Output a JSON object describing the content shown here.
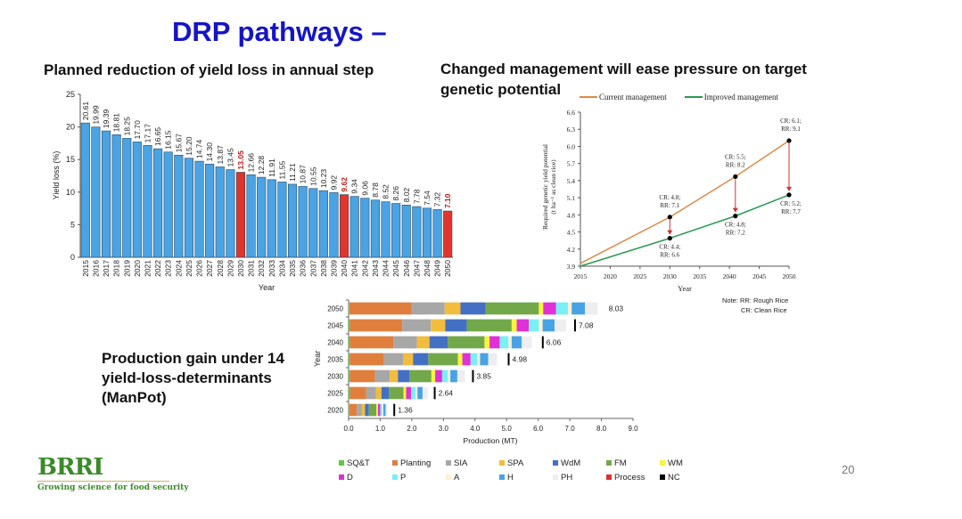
{
  "slide": {
    "title": "DRP pathways –",
    "page_number": "20",
    "bar_heading": "Planned reduction of yield loss in annual step",
    "line_heading": "Changed management will ease pressure on target genetic potential",
    "production_heading": "Production gain under 14 yield-loss-determinants (ManPot)",
    "logo": {
      "mark": "BRRI",
      "tagline": "Growing science for food security"
    },
    "note": {
      "line1": "Note: RR: Rough Rice",
      "line2": "CR: Clean Rice"
    }
  },
  "chart_data": [
    {
      "id": "yield-loss",
      "type": "bar",
      "title": "Planned reduction of yield loss in annual step",
      "xlabel": "Year",
      "ylabel": "Yield loss (%)",
      "ylim": [
        0,
        25
      ],
      "yticks": [
        0,
        5,
        10,
        15,
        20,
        25
      ],
      "categories": [
        "2015",
        "2016",
        "2017",
        "2018",
        "2019",
        "2020",
        "2021",
        "2022",
        "2023",
        "2024",
        "2025",
        "2026",
        "2027",
        "2028",
        "2029",
        "2030",
        "2031",
        "2032",
        "2033",
        "2034",
        "2035",
        "2036",
        "2037",
        "2038",
        "2039",
        "2040",
        "2041",
        "2042",
        "2043",
        "2044",
        "2045",
        "2046",
        "2047",
        "2048",
        "2049",
        "2050"
      ],
      "values": [
        20.61,
        19.99,
        19.39,
        18.81,
        18.25,
        17.7,
        17.17,
        16.65,
        16.15,
        15.67,
        15.2,
        14.74,
        14.3,
        13.87,
        13.45,
        13.05,
        12.66,
        12.28,
        11.91,
        11.55,
        11.21,
        10.87,
        10.55,
        10.23,
        9.92,
        9.62,
        9.34,
        9.06,
        8.78,
        8.52,
        8.26,
        8.02,
        7.78,
        7.54,
        7.32,
        7.1
      ],
      "labels": [
        "20.61",
        "19.99",
        "19.39",
        "18.81",
        "18.25",
        "17.70",
        "17.17",
        "16.65",
        "16.15",
        "15.67",
        "15.20",
        "14.74",
        "14.30",
        "13.87",
        "13.45",
        "13.05",
        "12.66",
        "12.28",
        "11.91",
        "11.55",
        "11.21",
        "10.87",
        "10.55",
        "10.23",
        "9.92",
        "9.62",
        "9.34",
        "9.06",
        "8.78",
        "8.52",
        "8.26",
        "8.02",
        "7.78",
        "7.54",
        "7.32",
        "7.10"
      ],
      "highlight_categories": [
        "2030",
        "2040",
        "2050"
      ],
      "colors": {
        "bar": "#4aa3e3",
        "highlight": "#e3342a",
        "highlight_label": "#c0201c"
      },
      "grid": false
    },
    {
      "id": "genetic-potential",
      "type": "line",
      "xlabel": "Year",
      "ylabel": "Required genetic yield potential (t ha⁻¹ as clean rice)",
      "xlim": [
        2015,
        2050
      ],
      "ylim": [
        3.9,
        6.6
      ],
      "xticks": [
        2015,
        2020,
        2025,
        2030,
        2035,
        2040,
        2045,
        2050
      ],
      "yticks": [
        "3.9",
        "4.2",
        "4.5",
        "4.8",
        "5.1",
        "5.4",
        "5.7",
        "6.0",
        "6.3",
        "6.6"
      ],
      "legend_position": "top",
      "series": [
        {
          "name": "Current management",
          "color": "#e08a48",
          "x": [
            2015,
            2030,
            2041,
            2050
          ],
          "y": [
            3.95,
            4.76,
            5.47,
            6.1
          ]
        },
        {
          "name": "Improved management",
          "color": "#2a9a52",
          "x": [
            2015,
            2030,
            2041,
            2050
          ],
          "y": [
            3.9,
            4.39,
            4.78,
            5.15
          ]
        }
      ],
      "annotations": [
        {
          "x": 2030,
          "y": 4.76,
          "lines": [
            "CR: 4.8;",
            "RR: 7.1"
          ],
          "pos": "above"
        },
        {
          "x": 2030,
          "y": 4.39,
          "lines": [
            "CR: 4.4;",
            "RR: 6.6"
          ],
          "pos": "below"
        },
        {
          "x": 2041,
          "y": 5.47,
          "lines": [
            "CR: 5.5;",
            "RR: 8.2"
          ],
          "pos": "above"
        },
        {
          "x": 2041,
          "y": 4.78,
          "lines": [
            "CR: 4.8;",
            "RR: 7.2"
          ],
          "pos": "below"
        },
        {
          "x": 2050,
          "y": 6.1,
          "lines": [
            "CR: 6.1;",
            "RR: 9.1"
          ],
          "pos": "above"
        },
        {
          "x": 2050,
          "y": 5.15,
          "lines": [
            "CR: 5.2;",
            "RR: 7.7"
          ],
          "pos": "below"
        }
      ],
      "arrows": [
        {
          "x": 2030,
          "from": 4.76,
          "to": 4.39
        },
        {
          "x": 2041,
          "from": 5.47,
          "to": 4.78
        },
        {
          "x": 2050,
          "from": 6.1,
          "to": 5.15
        }
      ],
      "arrow_color": "#d03030",
      "grid": false
    },
    {
      "id": "production-gain",
      "type": "bar",
      "orientation": "horizontal-stacked",
      "xlabel": "Production (MT)",
      "ylabel": "Year",
      "xlim": [
        0,
        9
      ],
      "xticks": [
        "0.0",
        "1.0",
        "2.0",
        "3.0",
        "4.0",
        "5.0",
        "6.0",
        "7.0",
        "8.0",
        "9.0"
      ],
      "categories": [
        "2050",
        "2045",
        "2040",
        "2035",
        "2030",
        "2025",
        "2020"
      ],
      "totals": [
        8.03,
        7.08,
        6.06,
        4.98,
        3.85,
        2.64,
        1.36
      ],
      "total_labels": [
        "8.03",
        "7.08",
        "6.06",
        "4.98",
        "3.85",
        "2.64",
        "1.36"
      ],
      "legend_position": "bottom",
      "series": [
        {
          "name": "SQ&T",
          "color": "#5dc94a",
          "values": [
            0.02,
            0.04,
            0.04,
            0.04,
            0.04,
            0.04,
            0.02
          ]
        },
        {
          "name": "Planting",
          "color": "#e07f3d",
          "values": [
            1.98,
            1.66,
            1.38,
            1.08,
            0.8,
            0.52,
            0.24
          ]
        },
        {
          "name": "SIA",
          "color": "#a7a7a7",
          "values": [
            1.04,
            0.9,
            0.74,
            0.6,
            0.46,
            0.3,
            0.16
          ]
        },
        {
          "name": "SPA",
          "color": "#f2bc3c",
          "values": [
            0.5,
            0.46,
            0.4,
            0.32,
            0.26,
            0.18,
            0.1
          ]
        },
        {
          "name": "WdM",
          "color": "#4470c4",
          "values": [
            0.8,
            0.68,
            0.58,
            0.48,
            0.36,
            0.24,
            0.12
          ]
        },
        {
          "name": "FM",
          "color": "#73a84a",
          "values": [
            1.68,
            1.42,
            1.16,
            0.94,
            0.7,
            0.46,
            0.24
          ]
        },
        {
          "name": "WM",
          "color": "#f7f53c",
          "values": [
            0.14,
            0.16,
            0.16,
            0.14,
            0.12,
            0.08,
            0.05
          ]
        },
        {
          "name": "D",
          "color": "#e030d8",
          "values": [
            0.4,
            0.38,
            0.32,
            0.26,
            0.22,
            0.16,
            0.07
          ]
        },
        {
          "name": "P",
          "color": "#78f0f5",
          "values": [
            0.38,
            0.32,
            0.28,
            0.22,
            0.18,
            0.14,
            0.06
          ]
        },
        {
          "name": "A",
          "color": "#fbf0d2",
          "values": [
            0.12,
            0.12,
            0.1,
            0.08,
            0.08,
            0.06,
            0.04
          ]
        },
        {
          "name": "H",
          "color": "#48a3e6",
          "values": [
            0.42,
            0.38,
            0.32,
            0.26,
            0.22,
            0.16,
            0.07
          ]
        },
        {
          "name": "PH",
          "color": "#eeeef0",
          "values": [
            0.4,
            0.36,
            0.32,
            0.28,
            0.24,
            0.16,
            0.06
          ]
        },
        {
          "name": "Process",
          "color": "#e03030",
          "values": [
            0.0,
            0.0,
            0.0,
            0.0,
            0.0,
            0.0,
            0.0
          ]
        },
        {
          "name": "NC",
          "color": "#000000",
          "values": [
            0.0,
            0.0,
            0.0,
            0.0,
            0.0,
            0.0,
            0.0
          ]
        }
      ],
      "grid": false
    }
  ]
}
